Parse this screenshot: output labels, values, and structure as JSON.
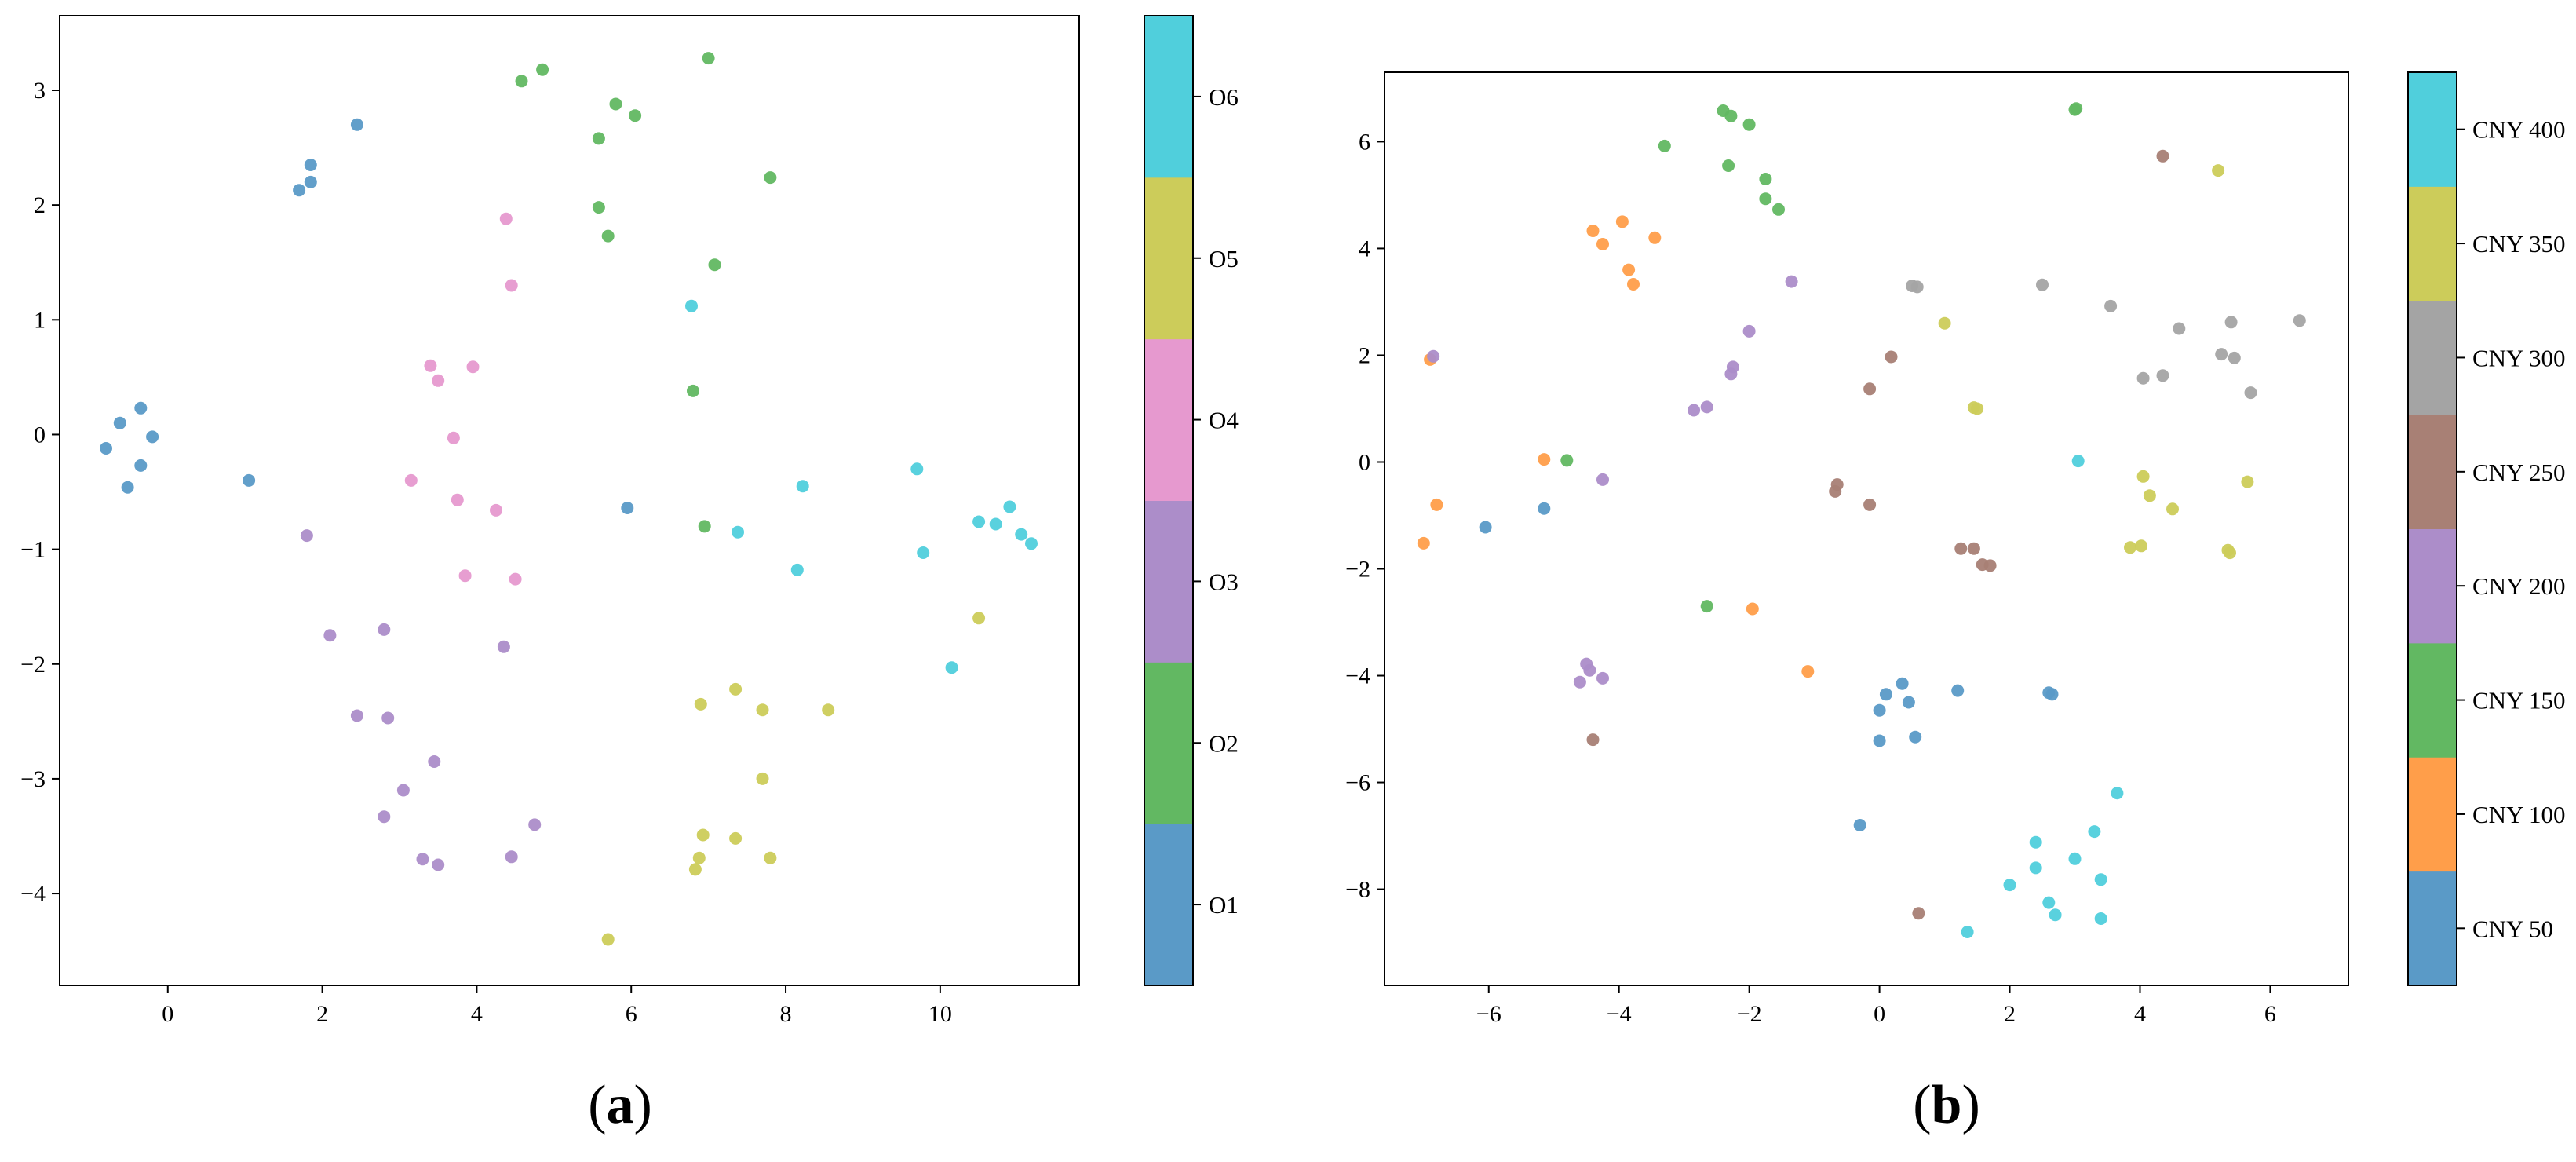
{
  "chart_data": [
    {
      "type": "scatter",
      "panel_label": "a",
      "xlim": [
        -1.4,
        11.8
      ],
      "ylim": [
        -4.8,
        3.65
      ],
      "xticks": [
        0,
        2,
        4,
        6,
        8,
        10
      ],
      "yticks": [
        -4,
        -3,
        -2,
        -1,
        0,
        1,
        2,
        3
      ],
      "grid": false,
      "colorbar": {
        "labels": [
          "O1",
          "O2",
          "O3",
          "O4",
          "O5",
          "O6"
        ],
        "colors": [
          "#5a9ac7",
          "#62b862",
          "#ac8dc9",
          "#e699cf",
          "#cccc5a",
          "#50cfdc"
        ]
      },
      "series": [
        {
          "name": "O1",
          "points": [
            [
              -0.8,
              -0.12
            ],
            [
              -0.62,
              0.1
            ],
            [
              -0.35,
              0.23
            ],
            [
              -0.2,
              -0.02
            ],
            [
              -0.35,
              -0.27
            ],
            [
              -0.52,
              -0.46
            ],
            [
              1.05,
              -0.4
            ],
            [
              1.7,
              2.13
            ],
            [
              1.85,
              2.2
            ],
            [
              1.85,
              2.35
            ],
            [
              2.45,
              2.7
            ],
            [
              5.95,
              -0.64
            ]
          ]
        },
        {
          "name": "O2",
          "points": [
            [
              4.58,
              3.08
            ],
            [
              4.85,
              3.18
            ],
            [
              5.58,
              2.58
            ],
            [
              5.8,
              2.88
            ],
            [
              6.05,
              2.78
            ],
            [
              5.58,
              1.98
            ],
            [
              5.7,
              1.73
            ],
            [
              7.0,
              3.28
            ],
            [
              7.8,
              2.24
            ],
            [
              7.08,
              1.48
            ],
            [
              6.8,
              0.38
            ],
            [
              6.95,
              -0.8
            ]
          ]
        },
        {
          "name": "O3",
          "points": [
            [
              1.8,
              -0.88
            ],
            [
              2.1,
              -1.75
            ],
            [
              2.8,
              -1.7
            ],
            [
              2.45,
              -2.45
            ],
            [
              2.85,
              -2.47
            ],
            [
              3.45,
              -2.85
            ],
            [
              3.05,
              -3.1
            ],
            [
              2.8,
              -3.33
            ],
            [
              3.3,
              -3.7
            ],
            [
              3.5,
              -3.75
            ],
            [
              4.35,
              -1.85
            ],
            [
              4.45,
              -3.68
            ],
            [
              4.75,
              -3.4
            ]
          ]
        },
        {
          "name": "O4",
          "points": [
            [
              4.38,
              1.88
            ],
            [
              4.45,
              1.3
            ],
            [
              3.4,
              0.6
            ],
            [
              3.5,
              0.47
            ],
            [
              3.95,
              0.59
            ],
            [
              3.7,
              -0.03
            ],
            [
              3.15,
              -0.4
            ],
            [
              3.75,
              -0.57
            ],
            [
              4.25,
              -0.66
            ],
            [
              3.85,
              -1.23
            ],
            [
              4.5,
              -1.26
            ]
          ]
        },
        {
          "name": "O5",
          "points": [
            [
              6.9,
              -2.35
            ],
            [
              7.35,
              -2.22
            ],
            [
              7.7,
              -2.4
            ],
            [
              8.55,
              -2.4
            ],
            [
              7.7,
              -3.0
            ],
            [
              6.93,
              -3.49
            ],
            [
              7.35,
              -3.52
            ],
            [
              6.88,
              -3.69
            ],
            [
              7.8,
              -3.69
            ],
            [
              6.83,
              -3.79
            ],
            [
              5.7,
              -4.4
            ],
            [
              10.5,
              -1.6
            ]
          ]
        },
        {
          "name": "O6",
          "points": [
            [
              6.78,
              1.12
            ],
            [
              8.22,
              -0.45
            ],
            [
              7.38,
              -0.85
            ],
            [
              8.15,
              -1.18
            ],
            [
              9.7,
              -0.3
            ],
            [
              9.78,
              -1.03
            ],
            [
              10.15,
              -2.03
            ],
            [
              10.5,
              -0.76
            ],
            [
              10.72,
              -0.78
            ],
            [
              10.9,
              -0.63
            ],
            [
              11.05,
              -0.87
            ],
            [
              11.18,
              -0.95
            ]
          ]
        }
      ]
    },
    {
      "type": "scatter",
      "panel_label": "b",
      "xlim": [
        -7.6,
        7.2
      ],
      "ylim": [
        -9.8,
        7.3
      ],
      "xticks": [
        -6,
        -4,
        -2,
        0,
        2,
        4,
        6
      ],
      "yticks": [
        -8,
        -6,
        -4,
        -2,
        0,
        2,
        4,
        6
      ],
      "grid": false,
      "colorbar": {
        "labels": [
          "CNY 50",
          "CNY 100",
          "CNY 150",
          "CNY 200",
          "CNY 250",
          "CNY 300",
          "CNY 350",
          "CNY 400"
        ],
        "colors": [
          "#5a9ac7",
          "#ff9e4a",
          "#62b862",
          "#ac8dc9",
          "#a88075",
          "#a4a4a4",
          "#cccc5a",
          "#50cfdc"
        ]
      },
      "series": [
        {
          "name": "CNY 50",
          "points": [
            [
              -6.05,
              -1.22
            ],
            [
              -5.15,
              -0.87
            ],
            [
              0.0,
              -4.65
            ],
            [
              0.1,
              -4.35
            ],
            [
              0.35,
              -4.15
            ],
            [
              0.45,
              -4.5
            ],
            [
              0.55,
              -5.15
            ],
            [
              0.0,
              -5.22
            ],
            [
              1.2,
              -4.28
            ],
            [
              2.6,
              -4.32
            ],
            [
              2.65,
              -4.35
            ],
            [
              -0.3,
              -6.8
            ]
          ]
        },
        {
          "name": "CNY 100",
          "points": [
            [
              -4.4,
              4.33
            ],
            [
              -4.25,
              4.08
            ],
            [
              -3.95,
              4.5
            ],
            [
              -3.85,
              3.6
            ],
            [
              -3.78,
              3.33
            ],
            [
              -3.45,
              4.2
            ],
            [
              -6.9,
              1.92
            ],
            [
              -6.8,
              -0.8
            ],
            [
              -7.0,
              -1.52
            ],
            [
              -5.15,
              0.05
            ],
            [
              -1.95,
              -2.75
            ],
            [
              -1.1,
              -3.92
            ]
          ]
        },
        {
          "name": "CNY 150",
          "points": [
            [
              -2.4,
              6.58
            ],
            [
              -2.28,
              6.48
            ],
            [
              -2.0,
              6.32
            ],
            [
              -2.32,
              5.55
            ],
            [
              -3.3,
              5.92
            ],
            [
              -1.75,
              5.3
            ],
            [
              -1.75,
              4.93
            ],
            [
              -1.55,
              4.73
            ],
            [
              3.0,
              6.6
            ],
            [
              3.02,
              6.62
            ],
            [
              -4.8,
              0.03
            ],
            [
              -2.65,
              -2.7
            ]
          ]
        },
        {
          "name": "CNY 200",
          "points": [
            [
              -6.85,
              1.98
            ],
            [
              -1.35,
              3.38
            ],
            [
              -2.0,
              2.45
            ],
            [
              -2.25,
              1.78
            ],
            [
              -2.28,
              1.65
            ],
            [
              -2.65,
              1.03
            ],
            [
              -2.85,
              0.97
            ],
            [
              -4.25,
              -0.33
            ],
            [
              -4.5,
              -3.78
            ],
            [
              -4.45,
              -3.9
            ],
            [
              -4.25,
              -4.05
            ],
            [
              -4.6,
              -4.12
            ]
          ]
        },
        {
          "name": "CNY 250",
          "points": [
            [
              4.35,
              5.73
            ],
            [
              0.18,
              1.97
            ],
            [
              -0.15,
              1.37
            ],
            [
              -0.65,
              -0.42
            ],
            [
              -0.68,
              -0.55
            ],
            [
              -0.15,
              -0.8
            ],
            [
              1.25,
              -1.62
            ],
            [
              1.45,
              -1.62
            ],
            [
              1.58,
              -1.92
            ],
            [
              1.7,
              -1.94
            ],
            [
              -4.4,
              -5.2
            ],
            [
              0.6,
              -8.45
            ]
          ]
        },
        {
          "name": "CNY 300",
          "points": [
            [
              0.5,
              3.3
            ],
            [
              0.58,
              3.28
            ],
            [
              2.5,
              3.32
            ],
            [
              3.55,
              2.92
            ],
            [
              4.6,
              2.5
            ],
            [
              5.4,
              2.62
            ],
            [
              5.25,
              2.02
            ],
            [
              5.45,
              1.95
            ],
            [
              4.35,
              1.62
            ],
            [
              4.05,
              1.57
            ],
            [
              6.45,
              2.65
            ],
            [
              5.7,
              1.3
            ]
          ]
        },
        {
          "name": "CNY 350",
          "points": [
            [
              5.2,
              5.46
            ],
            [
              1.0,
              2.6
            ],
            [
              1.45,
              1.02
            ],
            [
              1.5,
              1.0
            ],
            [
              4.05,
              -0.27
            ],
            [
              4.15,
              -0.63
            ],
            [
              4.5,
              -0.88
            ],
            [
              3.85,
              -1.6
            ],
            [
              4.02,
              -1.57
            ],
            [
              5.35,
              -1.65
            ],
            [
              5.38,
              -1.7
            ],
            [
              5.65,
              -0.37
            ]
          ]
        },
        {
          "name": "CNY 400",
          "points": [
            [
              3.05,
              0.02
            ],
            [
              3.65,
              -6.2
            ],
            [
              3.3,
              -6.92
            ],
            [
              2.4,
              -7.12
            ],
            [
              2.4,
              -7.6
            ],
            [
              3.0,
              -7.43
            ],
            [
              3.4,
              -7.82
            ],
            [
              2.0,
              -7.92
            ],
            [
              2.6,
              -8.25
            ],
            [
              2.7,
              -8.48
            ],
            [
              3.4,
              -8.55
            ],
            [
              1.35,
              -8.8
            ]
          ]
        }
      ]
    }
  ]
}
